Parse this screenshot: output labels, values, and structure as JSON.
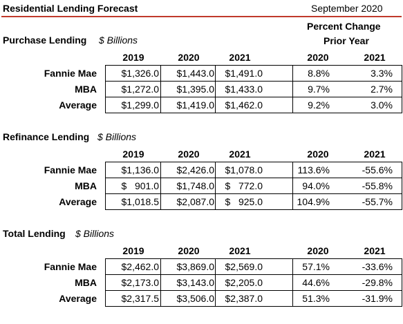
{
  "header": {
    "title": "Residential Lending Forecast",
    "date": "September 2020",
    "pct_change_line1": "Percent Change",
    "pct_change_line2": "Prior Year"
  },
  "sections": [
    {
      "title": "Purchase Lending",
      "unit": "$ Billions",
      "columns": [
        "2019",
        "2020",
        "2021"
      ],
      "pct_columns": [
        "2020",
        "2021"
      ],
      "rows": [
        {
          "label": "Fannie Mae",
          "values": [
            "$1,326.0",
            "$1,443.0",
            "$1,491.0"
          ],
          "pct": [
            "8.8%",
            "3.3%"
          ]
        },
        {
          "label": "MBA",
          "values": [
            "$1,272.0",
            "$1,395.0",
            "$1,433.0"
          ],
          "pct": [
            "9.7%",
            "2.7%"
          ]
        },
        {
          "label": "Average",
          "values": [
            "$1,299.0",
            "$1,419.0",
            "$1,462.0"
          ],
          "pct": [
            "9.2%",
            "3.0%"
          ]
        }
      ]
    },
    {
      "title": "Refinance Lending",
      "unit": "$ Billions",
      "columns": [
        "2019",
        "2020",
        "2021"
      ],
      "pct_columns": [
        "2020",
        "2021"
      ],
      "rows": [
        {
          "label": "Fannie Mae",
          "values": [
            "$1,136.0",
            "$2,426.0",
            "$1,078.0"
          ],
          "pct": [
            "113.6%",
            "-55.6%"
          ]
        },
        {
          "label": "MBA",
          "values": [
            "$   901.0",
            "$1,748.0",
            "$   772.0"
          ],
          "pct": [
            "94.0%",
            "-55.8%"
          ]
        },
        {
          "label": "Average",
          "values": [
            "$1,018.5",
            "$2,087.0",
            "$   925.0"
          ],
          "pct": [
            "104.9%",
            "-55.7%"
          ]
        }
      ]
    },
    {
      "title": "Total Lending",
      "unit": "$ Billions",
      "columns": [
        "2019",
        "2020",
        "2021"
      ],
      "pct_columns": [
        "2020",
        "2021"
      ],
      "rows": [
        {
          "label": "Fannie Mae",
          "values": [
            "$2,462.0",
            "$3,869.0",
            "$2,569.0"
          ],
          "pct": [
            "57.1%",
            "-33.6%"
          ]
        },
        {
          "label": "MBA",
          "values": [
            "$2,173.0",
            "$3,143.0",
            "$2,205.0"
          ],
          "pct": [
            "44.6%",
            "-29.8%"
          ]
        },
        {
          "label": "Average",
          "values": [
            "$2,317.5",
            "$3,506.0",
            "$2,387.0"
          ],
          "pct": [
            "51.3%",
            "-31.9%"
          ]
        }
      ]
    }
  ]
}
